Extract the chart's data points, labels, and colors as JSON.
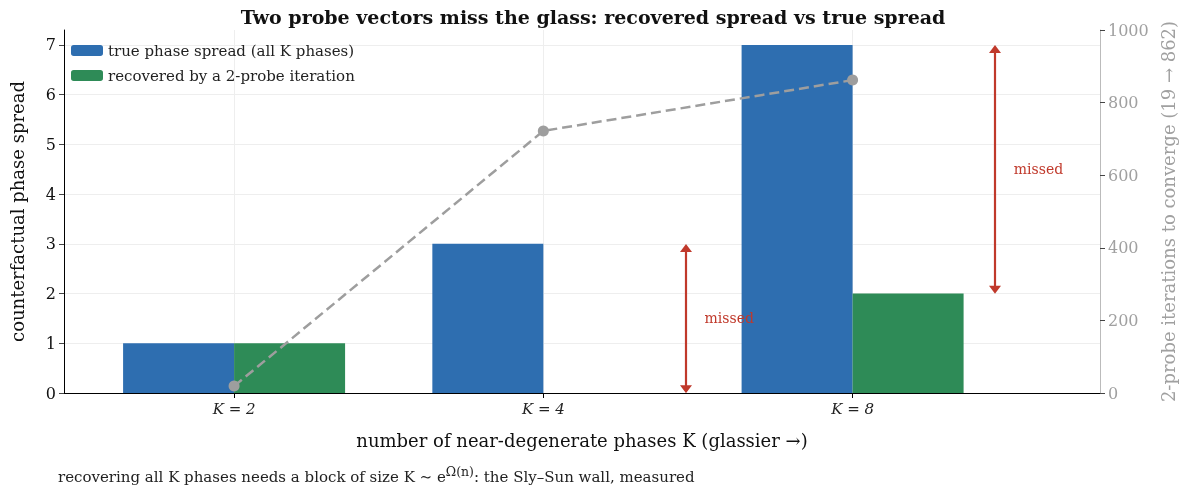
{
  "chart_data": {
    "type": "bar",
    "title": "Two probe vectors miss the glass: recovered spread vs true spread",
    "xlabel": "number of near-degenerate phases K (glassier →)",
    "ylabel": "counterfactual phase spread",
    "y2label": "2-probe iterations to converge (19 → 862)",
    "categories": [
      "K = 2",
      "K = 4",
      "K = 8"
    ],
    "series": [
      {
        "name": "true phase spread (all K phases)",
        "color": "#2e6eb0",
        "values": [
          1,
          3,
          7
        ]
      },
      {
        "name": "recovered by a 2-probe iteration",
        "color": "#2e8b57",
        "values": [
          1,
          0,
          2
        ]
      },
      {
        "type": "line",
        "axis": "y2",
        "color": "#9e9e9e",
        "values": [
          19,
          722,
          862
        ],
        "line_style": "dashed",
        "marker": "circle"
      }
    ],
    "ylim": [
      0,
      7.3
    ],
    "yticks": [
      0,
      1,
      2,
      3,
      4,
      5,
      6,
      7
    ],
    "y2lim": [
      0,
      1000
    ],
    "y2ticks": [
      0,
      200,
      400,
      600,
      800,
      1000
    ],
    "annotations": [
      "missed",
      "missed",
      "recovering all K phases needs a block of size K ∼ e$^{Ω(n)}$: the Sly–Sun wall, measured"
    ],
    "grid": true,
    "legend": "top left"
  }
}
